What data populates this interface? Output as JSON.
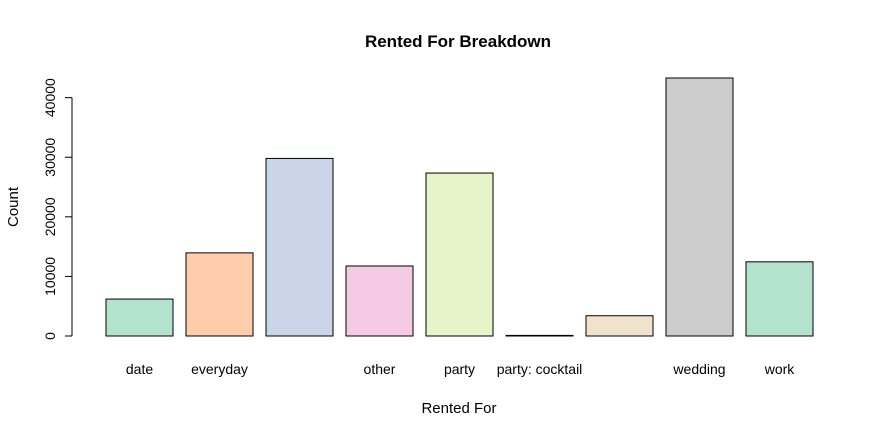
{
  "chart_data": {
    "type": "bar",
    "title": "Rented For Breakdown",
    "xlabel": "Rented For",
    "ylabel": "Count",
    "categories": [
      "date",
      "everyday",
      "",
      "other",
      "party",
      "party: cocktail",
      "",
      "wedding",
      "work"
    ],
    "values": [
      6200,
      13950,
      29800,
      11750,
      27350,
      100,
      3400,
      43300,
      12450
    ],
    "colors": [
      "#b3e2cd",
      "#fdcdac",
      "#cbd5e8",
      "#f4cae4",
      "#e6f5c9",
      "#fff2ae",
      "#f1e2cc",
      "#cccccc",
      "#b3e2cd"
    ],
    "yticks": [
      0,
      10000,
      20000,
      30000,
      40000
    ],
    "ytick_labels": [
      "0",
      "10000",
      "20000",
      "30000",
      "40000"
    ],
    "ylim": [
      0,
      43300
    ],
    "grid": false,
    "legend": "none"
  }
}
